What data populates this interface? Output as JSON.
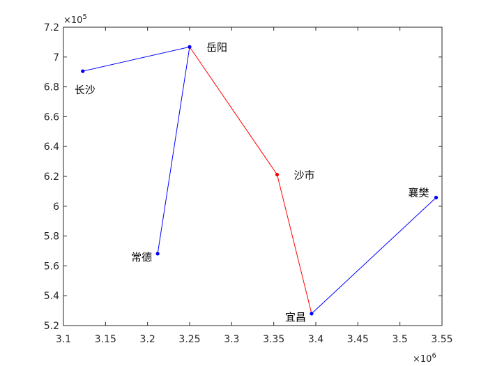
{
  "chart_data": {
    "type": "line",
    "xlim": [
      3100000,
      3550000
    ],
    "ylim": [
      520000,
      720000
    ],
    "x_ticks": [
      3100000,
      3150000,
      3200000,
      3250000,
      3300000,
      3350000,
      3400000,
      3450000,
      3500000,
      3550000
    ],
    "x_tick_labels": [
      "3.1",
      "3.15",
      "3.2",
      "3.25",
      "3.3",
      "3.35",
      "3.4",
      "3.45",
      "3.5",
      "3.55"
    ],
    "y_ticks": [
      520000,
      540000,
      560000,
      580000,
      600000,
      620000,
      640000,
      660000,
      680000,
      700000,
      720000
    ],
    "y_tick_labels": [
      "5.2",
      "5.4",
      "5.6",
      "5.8",
      "6",
      "6.2",
      "6.4",
      "6.6",
      "6.8",
      "7",
      "7.2"
    ],
    "x_exponent_label": "×10",
    "x_exponent_power": "6",
    "y_exponent_label": "×10",
    "y_exponent_power": "5",
    "grid": false,
    "points": [
      {
        "label": "长沙",
        "x": 3123000,
        "y": 690500,
        "color": "#0000ff",
        "label_pos": "below-left"
      },
      {
        "label": "岳阳",
        "x": 3250000,
        "y": 706800,
        "color": "#0000ff",
        "label_pos": "right"
      },
      {
        "label": "常德",
        "x": 3212000,
        "y": 568200,
        "color": "#0000ff",
        "label_pos": "left"
      },
      {
        "label": "沙市",
        "x": 3354000,
        "y": 621200,
        "color": "#ff0000",
        "label_pos": "right"
      },
      {
        "label": "宜昌",
        "x": 3395000,
        "y": 528000,
        "color": "#0000ff",
        "label_pos": "left"
      },
      {
        "label": "襄樊",
        "x": 3543000,
        "y": 605800,
        "color": "#0000ff",
        "label_pos": "above-left"
      }
    ],
    "segments": [
      {
        "from": 0,
        "to": 1,
        "color": "#0000ff"
      },
      {
        "from": 1,
        "to": 2,
        "color": "#0000ff"
      },
      {
        "from": 1,
        "to": 3,
        "color": "#ff0000"
      },
      {
        "from": 3,
        "to": 4,
        "color": "#ff0000"
      },
      {
        "from": 4,
        "to": 5,
        "color": "#0000ff"
      }
    ]
  }
}
